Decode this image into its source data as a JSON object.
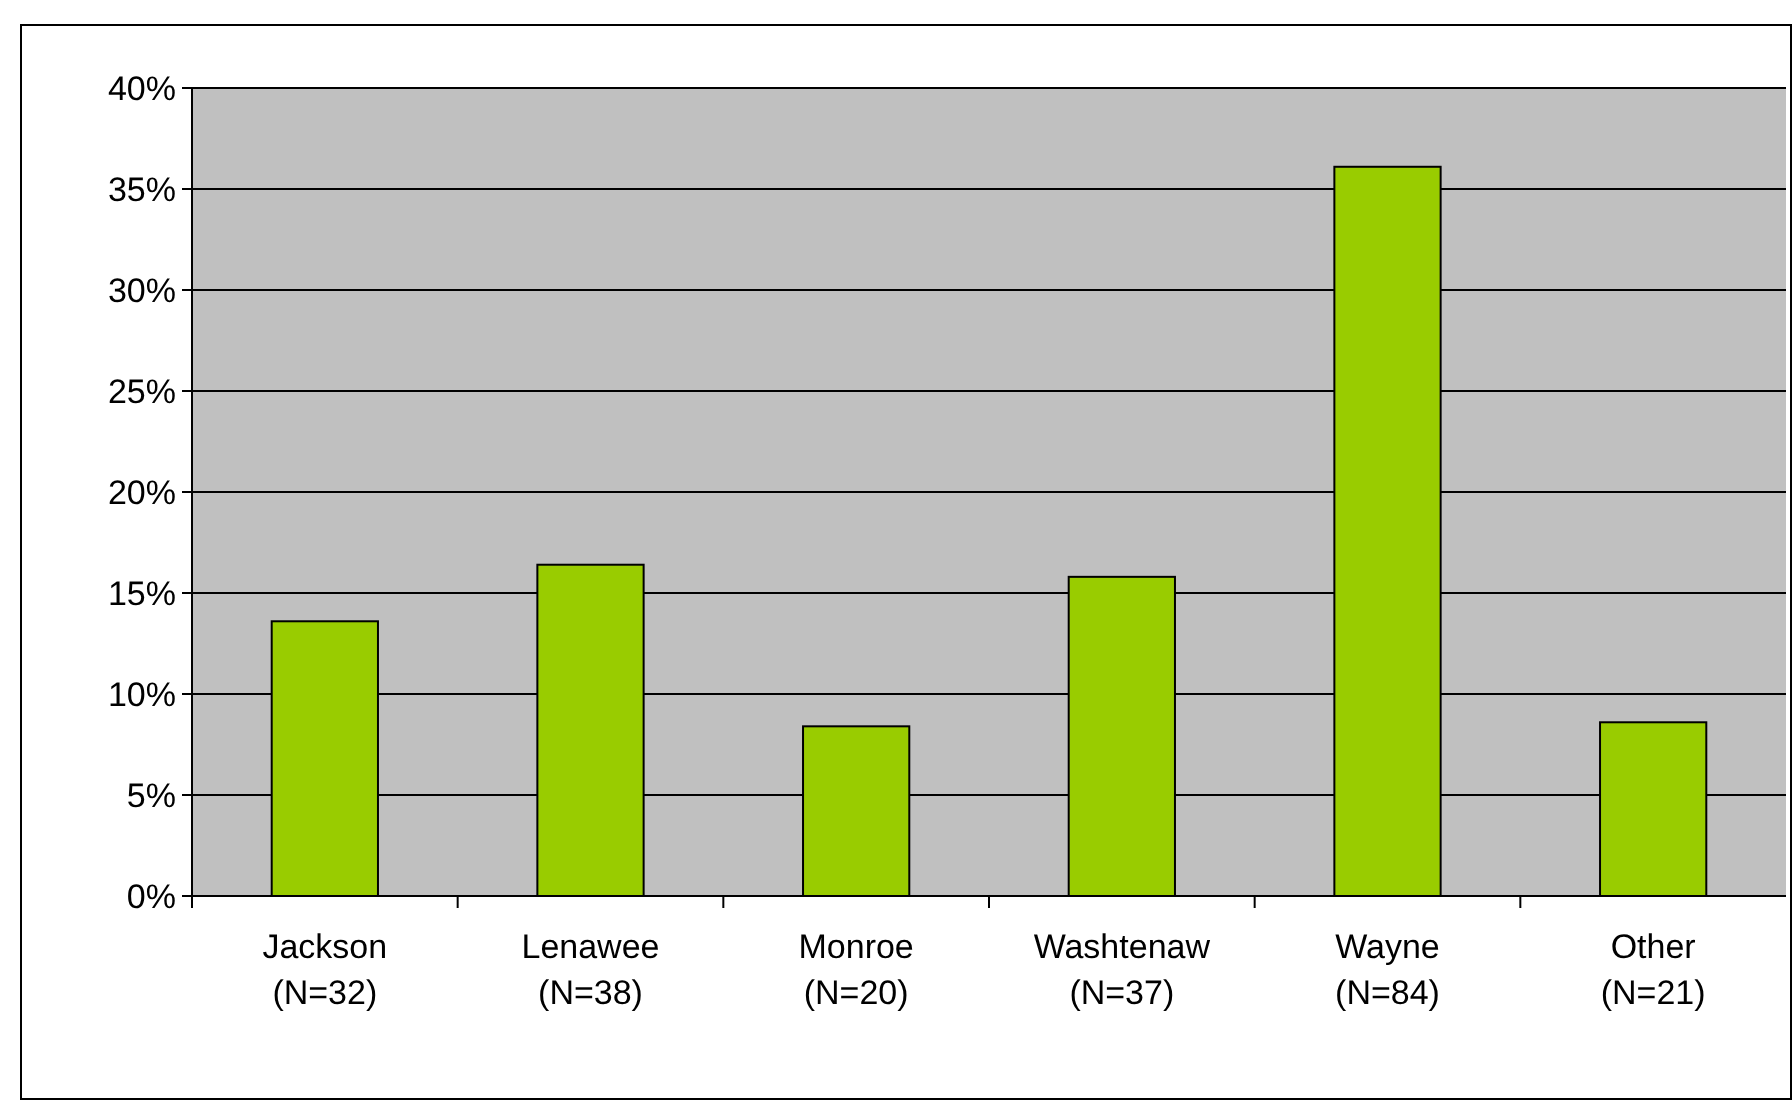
{
  "chart_data": {
    "type": "bar",
    "categories": [
      "Jackson\n(N=32)",
      "Lenawee\n(N=38)",
      "Monroe\n(N=20)",
      "Washtenaw\n(N=37)",
      "Wayne\n(N=84)",
      "Other\n(N=21)"
    ],
    "values": [
      13.6,
      16.4,
      8.4,
      15.8,
      36.1,
      8.6
    ],
    "color": "#99cc00",
    "ylim": [
      0,
      40
    ],
    "yticks": [
      {
        "value": 0,
        "label": "0%"
      },
      {
        "value": 5,
        "label": "5%"
      },
      {
        "value": 10,
        "label": "10%"
      },
      {
        "value": 15,
        "label": "15%"
      },
      {
        "value": 20,
        "label": "20%"
      },
      {
        "value": 25,
        "label": "25%"
      },
      {
        "value": 30,
        "label": "30%"
      },
      {
        "value": 35,
        "label": "35%"
      },
      {
        "value": 40,
        "label": "40%"
      }
    ],
    "grid": "y"
  }
}
